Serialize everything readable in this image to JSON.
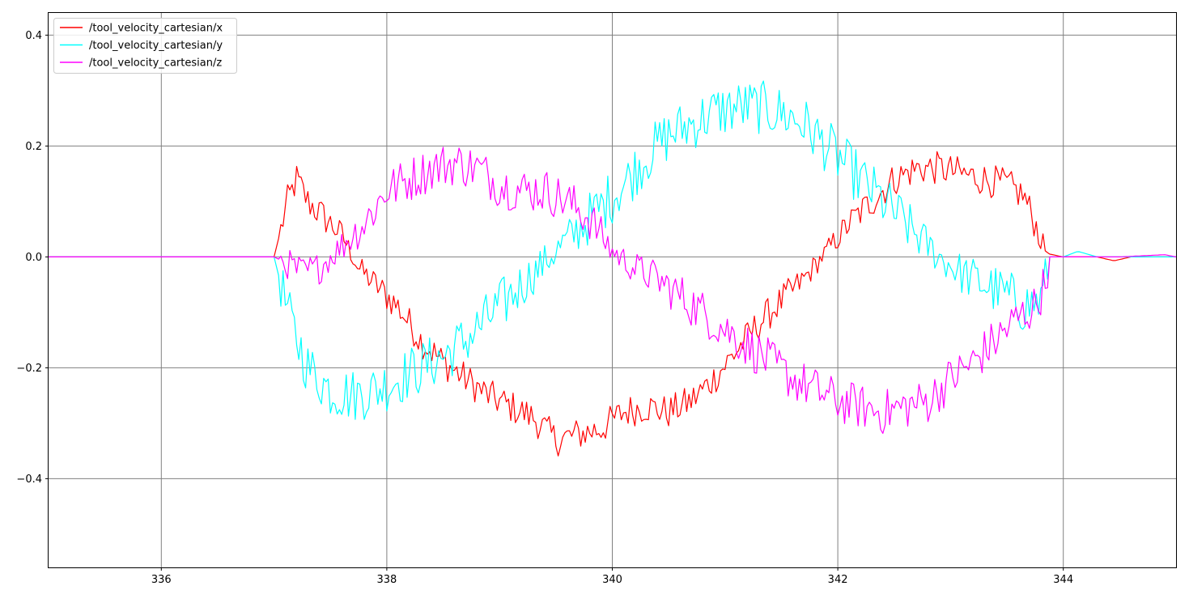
{
  "chart_data": {
    "type": "line",
    "title": "",
    "xlabel": "",
    "ylabel": "",
    "xlim": [
      335,
      345
    ],
    "ylim": [
      -0.56,
      0.44
    ],
    "grid": true,
    "legend_placement": "top-left",
    "x_ticks": [
      336,
      338,
      340,
      342,
      344
    ],
    "x_tick_labels": [
      "336",
      "338",
      "340",
      "342",
      "344"
    ],
    "y_ticks": [
      0.4,
      0.2,
      0.0,
      -0.2,
      -0.4
    ],
    "y_tick_labels": [
      "0.4",
      "0.2",
      "0.0",
      "−0.2",
      "−0.4"
    ],
    "series": [
      {
        "name": "/tool_velocity_cartesian/x",
        "color": "#ff0000",
        "points": [
          [
            335,
            0
          ],
          [
            336,
            0
          ],
          [
            337,
            0
          ],
          [
            337.06,
            0.05
          ],
          [
            337.12,
            0.1
          ],
          [
            337.2,
            0.14
          ],
          [
            337.3,
            0.1
          ],
          [
            337.45,
            0.07
          ],
          [
            337.6,
            0.04
          ],
          [
            337.75,
            -0.02
          ],
          [
            337.9,
            -0.05
          ],
          [
            338.1,
            -0.09
          ],
          [
            338.3,
            -0.15
          ],
          [
            338.5,
            -0.19
          ],
          [
            338.7,
            -0.22
          ],
          [
            338.9,
            -0.25
          ],
          [
            339.1,
            -0.27
          ],
          [
            339.3,
            -0.29
          ],
          [
            339.5,
            -0.33
          ],
          [
            339.7,
            -0.32
          ],
          [
            339.9,
            -0.31
          ],
          [
            340.1,
            -0.28
          ],
          [
            340.3,
            -0.27
          ],
          [
            340.5,
            -0.28
          ],
          [
            340.7,
            -0.26
          ],
          [
            340.9,
            -0.22
          ],
          [
            341.1,
            -0.17
          ],
          [
            341.3,
            -0.12
          ],
          [
            341.5,
            -0.08
          ],
          [
            341.7,
            -0.04
          ],
          [
            341.9,
            0.01
          ],
          [
            342.1,
            0.06
          ],
          [
            342.3,
            0.1
          ],
          [
            342.5,
            0.14
          ],
          [
            342.7,
            0.16
          ],
          [
            342.9,
            0.16
          ],
          [
            343.1,
            0.15
          ],
          [
            343.3,
            0.14
          ],
          [
            343.5,
            0.13
          ],
          [
            343.65,
            0.11
          ],
          [
            343.75,
            0.06
          ],
          [
            343.82,
            0.02
          ],
          [
            343.88,
            0.005
          ],
          [
            344,
            0
          ],
          [
            344.3,
            0
          ],
          [
            344.45,
            -0.007
          ],
          [
            344.6,
            0
          ],
          [
            345,
            0
          ]
        ]
      },
      {
        "name": "/tool_velocity_cartesian/y",
        "color": "#00ffff",
        "points": [
          [
            335,
            0
          ],
          [
            336,
            0
          ],
          [
            337,
            0
          ],
          [
            337.06,
            -0.05
          ],
          [
            337.15,
            -0.12
          ],
          [
            337.3,
            -0.2
          ],
          [
            337.5,
            -0.24
          ],
          [
            337.7,
            -0.25
          ],
          [
            337.9,
            -0.24
          ],
          [
            338.1,
            -0.22
          ],
          [
            338.3,
            -0.2
          ],
          [
            338.5,
            -0.18
          ],
          [
            338.7,
            -0.15
          ],
          [
            338.9,
            -0.11
          ],
          [
            339.1,
            -0.07
          ],
          [
            339.3,
            -0.03
          ],
          [
            339.5,
            0.01
          ],
          [
            339.7,
            0.05
          ],
          [
            339.9,
            0.09
          ],
          [
            340.1,
            0.13
          ],
          [
            340.3,
            0.18
          ],
          [
            340.5,
            0.22
          ],
          [
            340.7,
            0.24
          ],
          [
            340.9,
            0.26
          ],
          [
            341.1,
            0.27
          ],
          [
            341.3,
            0.27
          ],
          [
            341.5,
            0.26
          ],
          [
            341.7,
            0.24
          ],
          [
            341.9,
            0.2
          ],
          [
            342.1,
            0.16
          ],
          [
            342.3,
            0.12
          ],
          [
            342.5,
            0.08
          ],
          [
            342.7,
            0.04
          ],
          [
            342.9,
            0
          ],
          [
            343.1,
            -0.03
          ],
          [
            343.3,
            -0.05
          ],
          [
            343.5,
            -0.07
          ],
          [
            343.65,
            -0.09
          ],
          [
            343.8,
            -0.08
          ],
          [
            343.88,
            0
          ],
          [
            344,
            0
          ],
          [
            344.13,
            0.01
          ],
          [
            344.3,
            0
          ],
          [
            345,
            0
          ]
        ]
      },
      {
        "name": "/tool_velocity_cartesian/z",
        "color": "#ff00ff",
        "points": [
          [
            335,
            0
          ],
          [
            336,
            0
          ],
          [
            337,
            0
          ],
          [
            337.1,
            -0.01
          ],
          [
            337.25,
            -0.03
          ],
          [
            337.4,
            -0.02
          ],
          [
            337.6,
            0.02
          ],
          [
            337.8,
            0.06
          ],
          [
            338,
            0.12
          ],
          [
            338.2,
            0.14
          ],
          [
            338.4,
            0.16
          ],
          [
            338.6,
            0.17
          ],
          [
            338.8,
            0.16
          ],
          [
            339,
            0.13
          ],
          [
            339.2,
            0.12
          ],
          [
            339.4,
            0.12
          ],
          [
            339.6,
            0.1
          ],
          [
            339.8,
            0.07
          ],
          [
            340,
            0.01
          ],
          [
            340.2,
            -0.02
          ],
          [
            340.4,
            -0.04
          ],
          [
            340.6,
            -0.07
          ],
          [
            340.8,
            -0.1
          ],
          [
            341,
            -0.13
          ],
          [
            341.2,
            -0.16
          ],
          [
            341.4,
            -0.19
          ],
          [
            341.6,
            -0.22
          ],
          [
            341.8,
            -0.24
          ],
          [
            342,
            -0.26
          ],
          [
            342.2,
            -0.27
          ],
          [
            342.4,
            -0.28
          ],
          [
            342.6,
            -0.27
          ],
          [
            342.8,
            -0.26
          ],
          [
            343,
            -0.22
          ],
          [
            343.2,
            -0.19
          ],
          [
            343.4,
            -0.15
          ],
          [
            343.6,
            -0.11
          ],
          [
            343.75,
            -0.09
          ],
          [
            343.85,
            -0.04
          ],
          [
            343.88,
            0
          ],
          [
            344,
            0
          ],
          [
            344.5,
            0
          ],
          [
            344.9,
            0.004
          ],
          [
            345,
            0
          ]
        ]
      }
    ]
  }
}
